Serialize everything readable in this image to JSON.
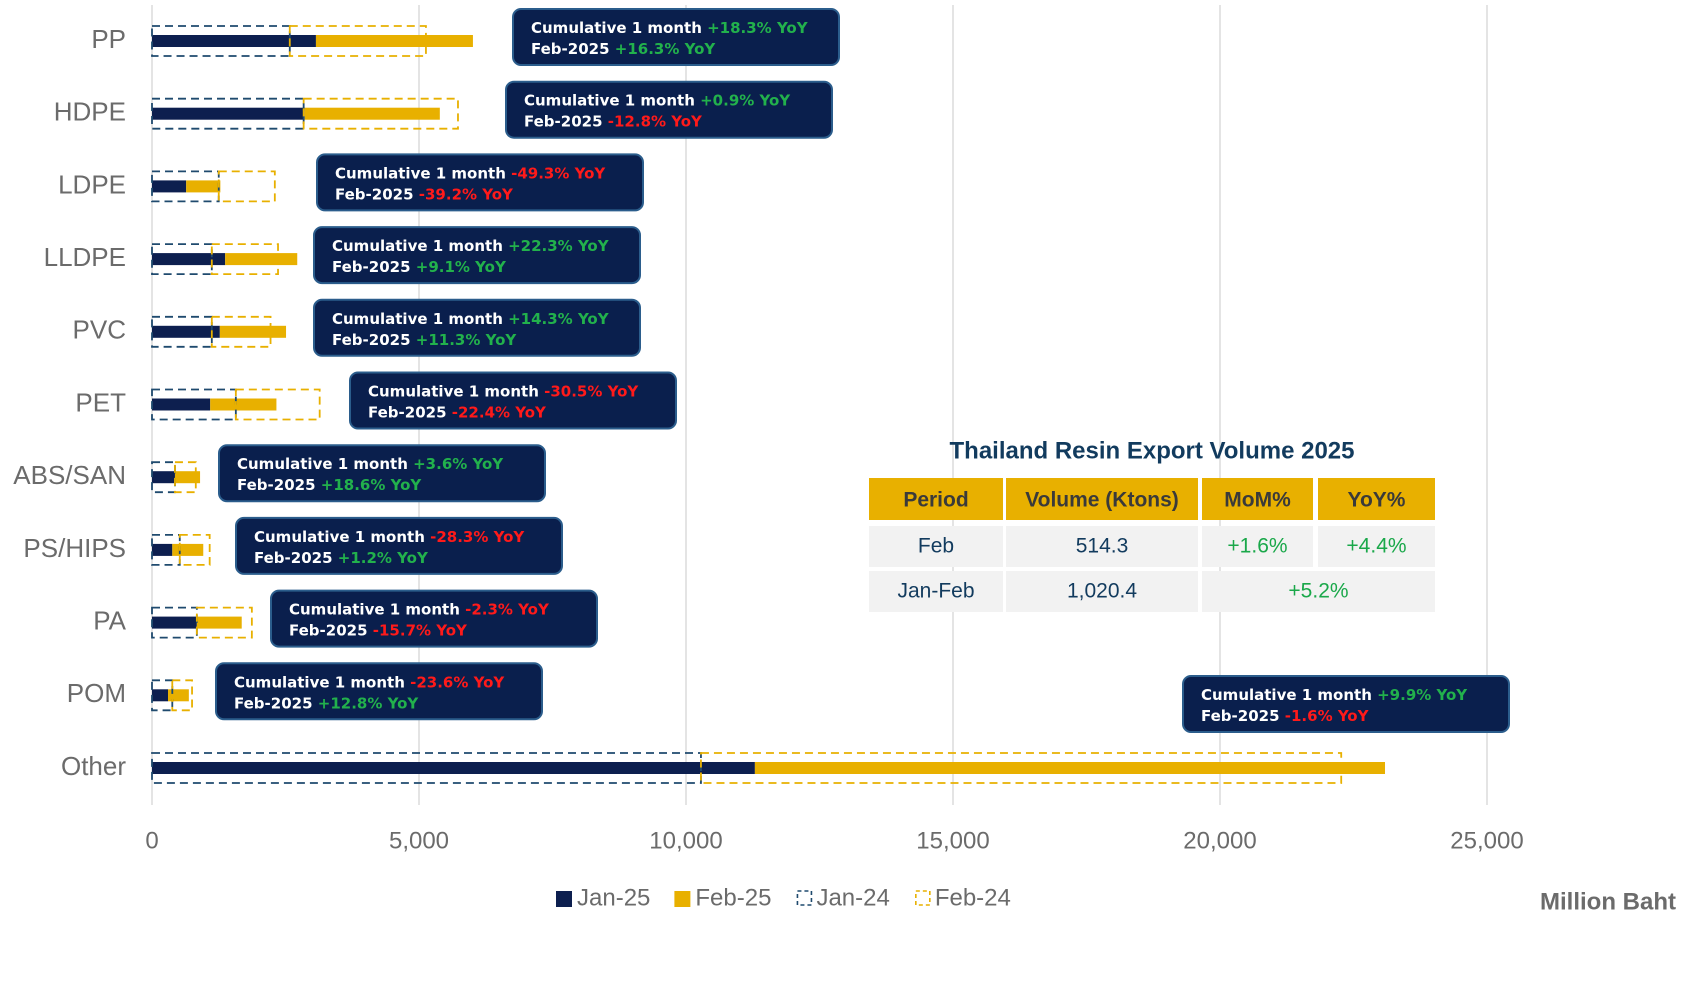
{
  "chart_data": {
    "type": "bar",
    "orientation": "horizontal",
    "categories": [
      "PP",
      "HDPE",
      "LDPE",
      "LLDPE",
      "PVC",
      "PET",
      "ABS/SAN",
      "PS/HIPS",
      "PA",
      "POM",
      "Other"
    ],
    "series": [
      {
        "name": "Jan-25",
        "color": "#0d1f4f",
        "dashed": false,
        "values": [
          3070,
          2860,
          640,
          1370,
          1270,
          1090,
          430,
          380,
          840,
          300,
          11290
        ]
      },
      {
        "name": "Feb-25",
        "color": "#e8b000",
        "dashed": false,
        "values": [
          2940,
          2530,
          640,
          1350,
          1240,
          1240,
          470,
          580,
          840,
          390,
          11800
        ]
      },
      {
        "name": "Jan-24",
        "color": "#1f4a6e",
        "dashed": true,
        "values": [
          2580,
          2840,
          1250,
          1120,
          1120,
          1570,
          430,
          520,
          840,
          380,
          10280
        ]
      },
      {
        "name": "Feb-24",
        "color": "#e8b000",
        "dashed": true,
        "values": [
          2550,
          2890,
          1050,
          1240,
          1100,
          1570,
          390,
          560,
          1030,
          370,
          11990
        ]
      }
    ],
    "xlim": [
      0,
      25000
    ],
    "xticks": [
      0,
      {
        "value": 5000,
        "label": "5,000"
      },
      {
        "value": 10000,
        "label": "10,000"
      },
      {
        "value": 15000,
        "label": "15,000"
      },
      {
        "value": 20000,
        "label": "20,000"
      },
      {
        "value": 25000,
        "label": "25,000"
      }
    ],
    "grid": true,
    "x_label": "Million Baht",
    "legend": "bottom",
    "annotations": [
      {
        "line1": "Cumulative 1 month",
        "cum": "+18.3% YoY",
        "line2": "Feb-2025",
        "feb": "+16.3% YoY"
      },
      {
        "line1": "Cumulative 1 month",
        "cum": "+0.9% YoY",
        "line2": "Feb-2025",
        "feb": "-12.8% YoY"
      },
      {
        "line1": "Cumulative 1 month",
        "cum": "-49.3% YoY",
        "line2": "Feb-2025",
        "feb": "-39.2% YoY"
      },
      {
        "line1": "Cumulative 1 month",
        "cum": "+22.3% YoY",
        "line2": "Feb-2025",
        "feb": "+9.1% YoY"
      },
      {
        "line1": "Cumulative 1 month",
        "cum": "+14.3% YoY",
        "line2": "Feb-2025",
        "feb": "+11.3% YoY"
      },
      {
        "line1": "Cumulative 1 month",
        "cum": "-30.5% YoY",
        "line2": "Feb-2025",
        "feb": "-22.4% YoY"
      },
      {
        "line1": "Cumulative 1 month",
        "cum": "+3.6% YoY",
        "line2": "Feb-2025",
        "feb": "+18.6% YoY"
      },
      {
        "line1": "Cumulative 1 month",
        "cum": "-28.3% YoY",
        "line2": "Feb-2025",
        "feb": "+1.2% YoY"
      },
      {
        "line1": "Cumulative 1 month",
        "cum": "-2.3% YoY",
        "line2": "Feb-2025",
        "feb": "-15.7% YoY"
      },
      {
        "line1": "Cumulative 1 month",
        "cum": "-23.6% YoY",
        "line2": "Feb-2025",
        "feb": "+12.8% YoY"
      },
      {
        "line1": "Cumulative 1 month",
        "cum": "+9.9% YoY",
        "line2": "Feb-2025",
        "feb": "-1.6% YoY"
      }
    ]
  },
  "table": {
    "title": "Thailand Resin Export Volume 2025",
    "header": [
      "Period",
      "Volume (Ktons)",
      "MoM%",
      "YoY%"
    ],
    "rows": [
      [
        "Feb",
        "514.3",
        "+1.6%",
        "+4.4%"
      ],
      [
        "Jan-Feb",
        "1,020.4",
        "+5.2%"
      ]
    ]
  }
}
